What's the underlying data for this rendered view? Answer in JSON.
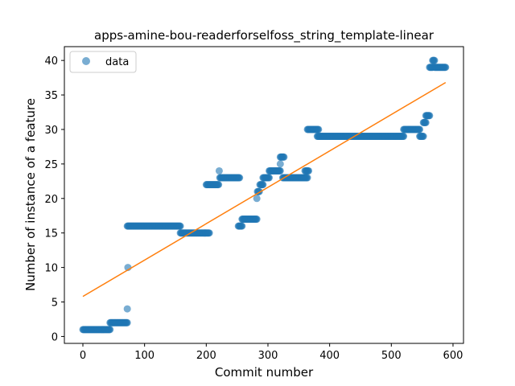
{
  "chart_data": {
    "type": "scatter",
    "title": "apps-amine-bou-readerforselfoss_string_template-linear",
    "xlabel": "Commit number",
    "ylabel": "Number of instance of a feature",
    "xlim": [
      -30,
      617
    ],
    "ylim": [
      -1,
      42
    ],
    "xticks": [
      0,
      100,
      200,
      300,
      400,
      500,
      600
    ],
    "yticks": [
      0,
      5,
      10,
      15,
      20,
      25,
      30,
      35,
      40
    ],
    "legend": {
      "placement": "top-left",
      "entries": [
        "data"
      ]
    },
    "grid": false,
    "colors": {
      "points": "#1f77b4",
      "fit": "#ff7f0e"
    },
    "series": [
      {
        "name": "data",
        "kind": "scatter",
        "segments": [
          {
            "x_start": 0,
            "x_end": 44,
            "y": 1
          },
          {
            "x_start": 44,
            "x_end": 72,
            "y": 2
          },
          {
            "x_start": 72,
            "x_end": 158,
            "y": 16
          },
          {
            "x_start": 158,
            "x_end": 205,
            "y": 15
          },
          {
            "x_start": 200,
            "x_end": 220,
            "y": 22
          },
          {
            "x_start": 222,
            "x_end": 254,
            "y": 23
          },
          {
            "x_start": 252,
            "x_end": 258,
            "y": 16
          },
          {
            "x_start": 258,
            "x_end": 282,
            "y": 17
          },
          {
            "x_start": 283,
            "x_end": 286,
            "y": 21
          },
          {
            "x_start": 287,
            "x_end": 292,
            "y": 22
          },
          {
            "x_start": 292,
            "x_end": 302,
            "y": 23
          },
          {
            "x_start": 302,
            "x_end": 320,
            "y": 24
          },
          {
            "x_start": 320,
            "x_end": 326,
            "y": 26
          },
          {
            "x_start": 324,
            "x_end": 364,
            "y": 23
          },
          {
            "x_start": 360,
            "x_end": 366,
            "y": 24
          },
          {
            "x_start": 364,
            "x_end": 382,
            "y": 30
          },
          {
            "x_start": 380,
            "x_end": 520,
            "y": 29
          },
          {
            "x_start": 520,
            "x_end": 546,
            "y": 30
          },
          {
            "x_start": 546,
            "x_end": 552,
            "y": 29
          },
          {
            "x_start": 552,
            "x_end": 556,
            "y": 31
          },
          {
            "x_start": 556,
            "x_end": 562,
            "y": 32
          },
          {
            "x_start": 562,
            "x_end": 567,
            "y": 39
          },
          {
            "x_start": 567,
            "x_end": 570,
            "y": 40
          },
          {
            "x_start": 570,
            "x_end": 588,
            "y": 39
          }
        ],
        "extra_points": [
          [
            72,
            4
          ],
          [
            73,
            10
          ],
          [
            221,
            24
          ],
          [
            282,
            20
          ],
          [
            320,
            25
          ]
        ]
      },
      {
        "kind": "line",
        "x": [
          0,
          588
        ],
        "y": [
          5.8,
          36.8
        ]
      }
    ]
  }
}
